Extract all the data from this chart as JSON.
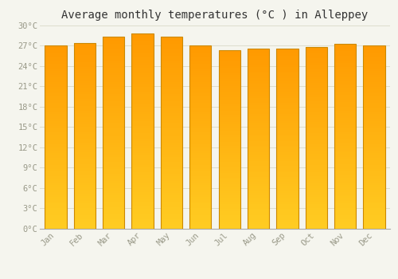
{
  "title": "Average monthly temperatures (°C ) in Alleppey",
  "months": [
    "Jan",
    "Feb",
    "Mar",
    "Apr",
    "May",
    "Jun",
    "Jul",
    "Aug",
    "Sep",
    "Oct",
    "Nov",
    "Dec"
  ],
  "temperatures": [
    27.0,
    27.3,
    28.3,
    28.8,
    28.3,
    27.0,
    26.3,
    26.5,
    26.5,
    26.8,
    27.2,
    27.0
  ],
  "bar_color_bottom": "#FFCC00",
  "bar_color_top": "#FFA000",
  "bar_edge_color": "#CC8800",
  "background_color": "#F5F5EE",
  "grid_color": "#DDDDCC",
  "tick_label_color": "#999988",
  "title_color": "#333333",
  "ylim": [
    0,
    30
  ],
  "yticks": [
    0,
    3,
    6,
    9,
    12,
    15,
    18,
    21,
    24,
    27,
    30
  ],
  "ytick_labels": [
    "0°C",
    "3°C",
    "6°C",
    "9°C",
    "12°C",
    "15°C",
    "18°C",
    "21°C",
    "24°C",
    "27°C",
    "30°C"
  ],
  "title_fontsize": 10,
  "tick_fontsize": 7.5,
  "font_family": "monospace",
  "bar_width": 0.75
}
